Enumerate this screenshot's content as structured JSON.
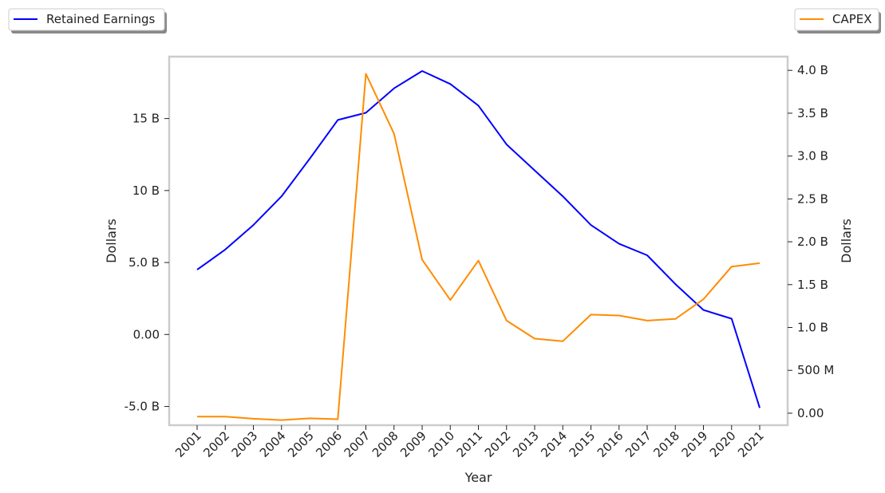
{
  "chart_data": {
    "type": "line",
    "x": [
      "2001",
      "2002",
      "2003",
      "2004",
      "2005",
      "2006",
      "2007",
      "2008",
      "2009",
      "2010",
      "2011",
      "2012",
      "2013",
      "2014",
      "2015",
      "2016",
      "2017",
      "2018",
      "2019",
      "2020",
      "2021"
    ],
    "xlabel": "Year",
    "y_left_label": "Dollars",
    "y_right_label": "Dollars",
    "y_left_ticks": [
      {
        "value": -5000000000,
        "label": "-5.0 B"
      },
      {
        "value": 0,
        "label": "0.00"
      },
      {
        "value": 5000000000,
        "label": "5.0 B"
      },
      {
        "value": 10000000000,
        "label": "10 B"
      },
      {
        "value": 15000000000,
        "label": "15 B"
      }
    ],
    "y_right_ticks": [
      {
        "value": 0,
        "label": "0.00"
      },
      {
        "value": 500000000,
        "label": "500 M"
      },
      {
        "value": 1000000000,
        "label": "1.0 B"
      },
      {
        "value": 1500000000,
        "label": "1.5 B"
      },
      {
        "value": 2000000000,
        "label": "2.0 B"
      },
      {
        "value": 2500000000,
        "label": "2.5 B"
      },
      {
        "value": 3000000000,
        "label": "3.0 B"
      },
      {
        "value": 3500000000,
        "label": "3.5 B"
      },
      {
        "value": 4000000000,
        "label": "4.0 B"
      }
    ],
    "y_left_range": [
      -6300000000,
      19300000000
    ],
    "y_right_range": [
      -140000000,
      4160000000
    ],
    "grid": false,
    "series": [
      {
        "name": "Retained Earnings",
        "axis": "left",
        "color": "#0000ff",
        "legend_position": "top-left",
        "values": [
          4500000000,
          5900000000,
          7600000000,
          9600000000,
          12200000000,
          14900000000,
          15400000000,
          17100000000,
          18300000000,
          17400000000,
          15900000000,
          13200000000,
          11400000000,
          9600000000,
          7600000000,
          6300000000,
          5500000000,
          3500000000,
          1700000000,
          1100000000,
          -5100000000
        ]
      },
      {
        "name": "CAPEX",
        "axis": "right",
        "color": "#ff8c00",
        "legend_position": "top-right",
        "values": [
          -40000000,
          -40000000,
          -65000000,
          -80000000,
          -60000000,
          -70000000,
          3960000000,
          3260000000,
          1790000000,
          1320000000,
          1780000000,
          1080000000,
          870000000,
          840000000,
          1150000000,
          1140000000,
          1080000000,
          1100000000,
          1330000000,
          1710000000,
          1750000000
        ]
      }
    ]
  }
}
